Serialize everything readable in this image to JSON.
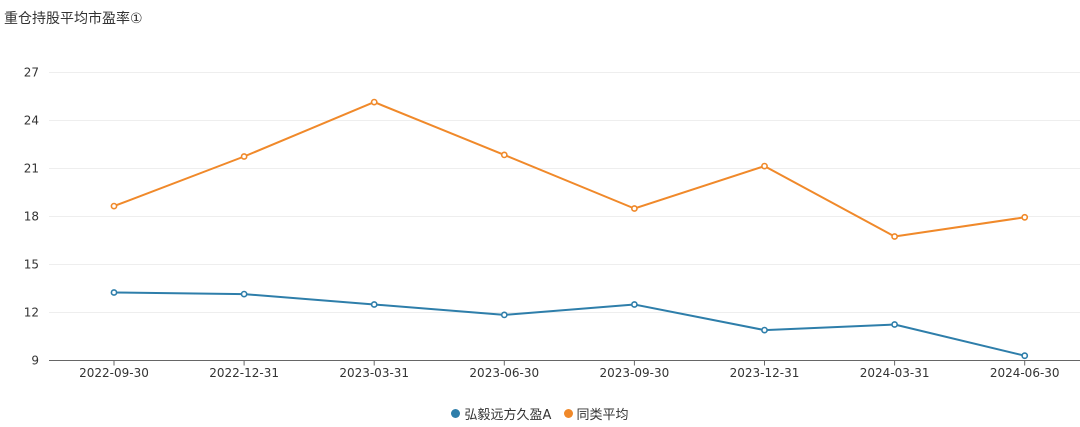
{
  "chart_data": {
    "type": "line",
    "title": "重仓持股平均市盈率①",
    "categories": [
      "2022-09-30",
      "2022-12-31",
      "2023-03-31",
      "2023-06-30",
      "2023-09-30",
      "2023-12-31",
      "2024-03-31",
      "2024-06-30"
    ],
    "y_ticks": [
      "9",
      "12",
      "15",
      "18",
      "21",
      "24",
      "27"
    ],
    "ylim": [
      9,
      27
    ],
    "xlabel": "",
    "ylabel": "",
    "series": [
      {
        "name": "弘毅远方久盈A",
        "color": "#2e7eaa",
        "values": [
          13.25,
          13.15,
          12.5,
          11.85,
          12.5,
          10.9,
          11.25,
          9.3
        ]
      },
      {
        "name": "同类平均",
        "color": "#f0892a",
        "values": [
          18.65,
          21.75,
          25.15,
          21.85,
          18.5,
          21.15,
          16.75,
          17.95
        ]
      }
    ]
  }
}
